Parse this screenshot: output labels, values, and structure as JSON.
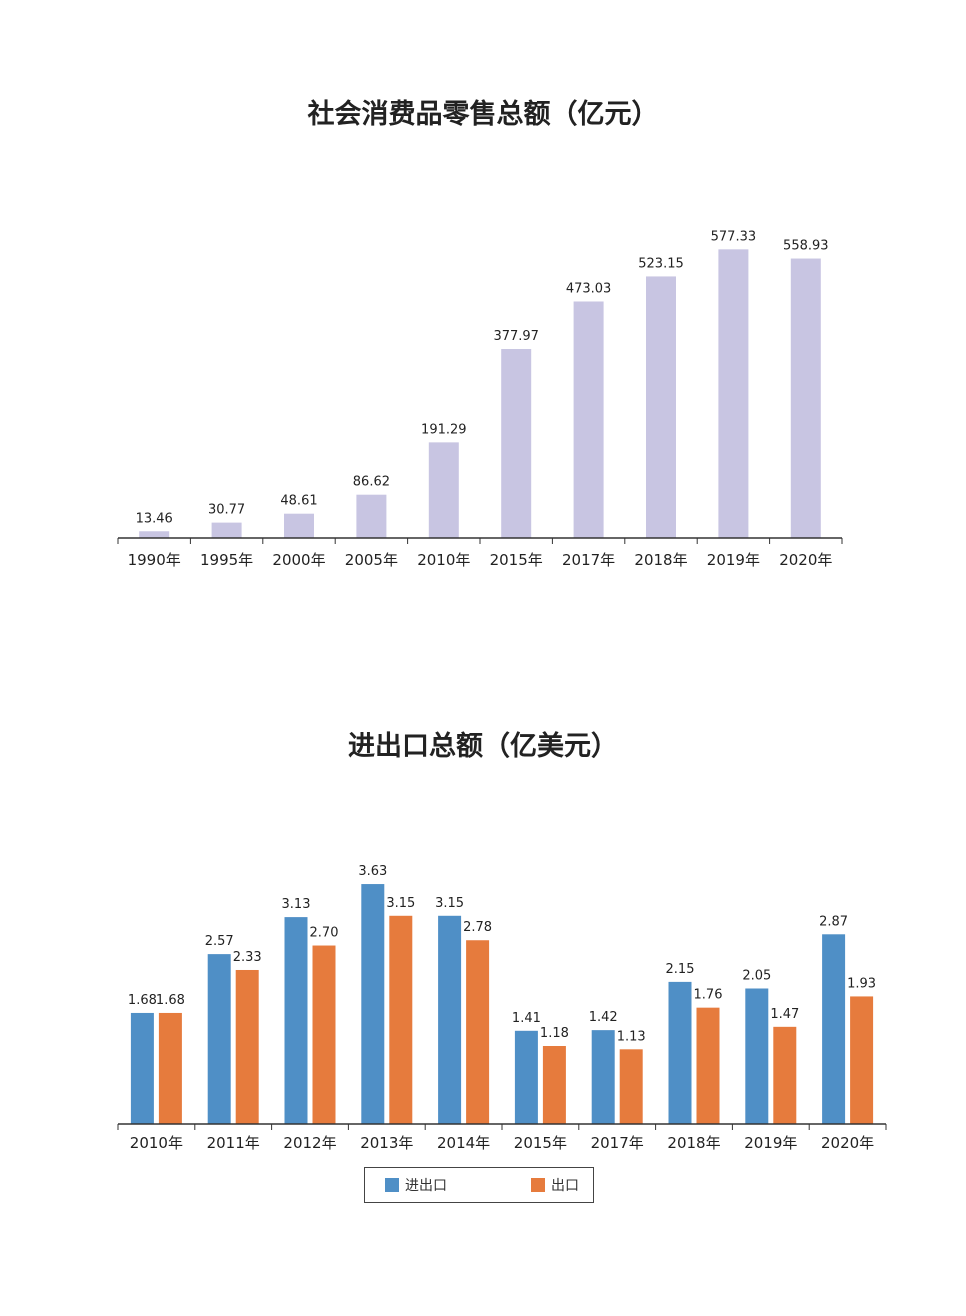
{
  "charts": {
    "retail": {
      "title": "社会消费品零售总额（亿元）"
    },
    "trade": {
      "title": "进出口总额（亿美元）",
      "legend": [
        "进出口",
        "出口"
      ]
    }
  },
  "colors": {
    "retail_bar": "#c8c5e2",
    "import_export": "#4f8fc6",
    "export": "#e67b3d",
    "axis": "#333333",
    "label": "#222222"
  },
  "chart_data": [
    {
      "type": "bar",
      "title": "社会消费品零售总额（亿元）",
      "categories": [
        "1990年",
        "1995年",
        "2000年",
        "2005年",
        "2010年",
        "2015年",
        "2017年",
        "2018年",
        "2019年",
        "2020年"
      ],
      "values": [
        13.46,
        30.77,
        48.61,
        86.62,
        191.29,
        377.97,
        473.03,
        523.15,
        577.33,
        558.93
      ],
      "value_labels": [
        "13.46",
        "30.77",
        "48.61",
        "86.62",
        "191.29",
        "377.97",
        "473.03",
        "523.15",
        "577.33",
        "558.93"
      ],
      "ylim": [
        0,
        600
      ],
      "grid": false
    },
    {
      "type": "bar",
      "title": "进出口总额（亿美元）",
      "categories": [
        "2010年",
        "2011年",
        "2012年",
        "2013年",
        "2014年",
        "2015年",
        "2017年",
        "2018年",
        "2019年",
        "2020年"
      ],
      "series": [
        {
          "name": "进出口",
          "values": [
            1.68,
            2.57,
            3.13,
            3.63,
            3.15,
            1.41,
            1.42,
            2.15,
            2.05,
            2.87
          ],
          "value_labels": [
            "1.68",
            "2.57",
            "3.13",
            "3.63",
            "3.15",
            "1.41",
            "1.42",
            "2.15",
            "2.05",
            "2.87"
          ]
        },
        {
          "name": "出口",
          "values": [
            1.68,
            2.33,
            2.7,
            3.15,
            2.78,
            1.18,
            1.13,
            1.76,
            1.47,
            1.93
          ],
          "value_labels": [
            "1.68",
            "2.33",
            "2.70",
            "3.15",
            "2.78",
            "1.18",
            "1.13",
            "1.76",
            "1.47",
            "1.93"
          ]
        }
      ],
      "ylim": [
        0,
        3.8
      ],
      "legend_position": "bottom",
      "grid": false
    }
  ]
}
